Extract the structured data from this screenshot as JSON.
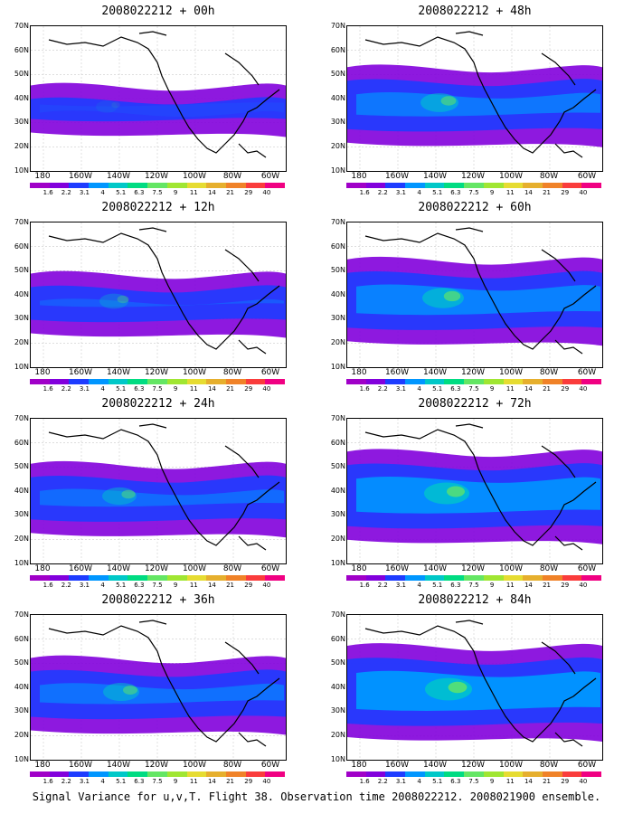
{
  "panels": [
    {
      "title": "2008022212 + 00h",
      "coverage": 0.1
    },
    {
      "title": "2008022212 + 48h",
      "coverage": 0.55
    },
    {
      "title": "2008022212 + 12h",
      "coverage": 0.3
    },
    {
      "title": "2008022212 + 60h",
      "coverage": 0.65
    },
    {
      "title": "2008022212 + 24h",
      "coverage": 0.45
    },
    {
      "title": "2008022212 + 72h",
      "coverage": 0.75
    },
    {
      "title": "2008022212 + 36h",
      "coverage": 0.5
    },
    {
      "title": "2008022212 + 84h",
      "coverage": 0.8
    }
  ],
  "y_labels": [
    "70N",
    "60N",
    "50N",
    "40N",
    "30N",
    "20N",
    "10N"
  ],
  "x_labels": [
    "180",
    "160W",
    "140W",
    "120W",
    "100W",
    "80W",
    "60W"
  ],
  "colorbar_labels": [
    "1.6",
    "2.2",
    "3.1",
    "4",
    "5.1",
    "6.3",
    "7.5",
    "9",
    "11",
    "14",
    "21",
    "29",
    "40"
  ],
  "colorbar_colors": [
    "#a000c8",
    "#8200dc",
    "#1e3cff",
    "#0096ff",
    "#00c8c8",
    "#00dc82",
    "#64e664",
    "#a0e632",
    "#e6dc32",
    "#e6af2d",
    "#f08228",
    "#fa3c3c",
    "#f00082"
  ],
  "caption": "Signal Variance for u,v,T. Flight 38. Observation time 2008022212. 2008021900 ensemble."
}
